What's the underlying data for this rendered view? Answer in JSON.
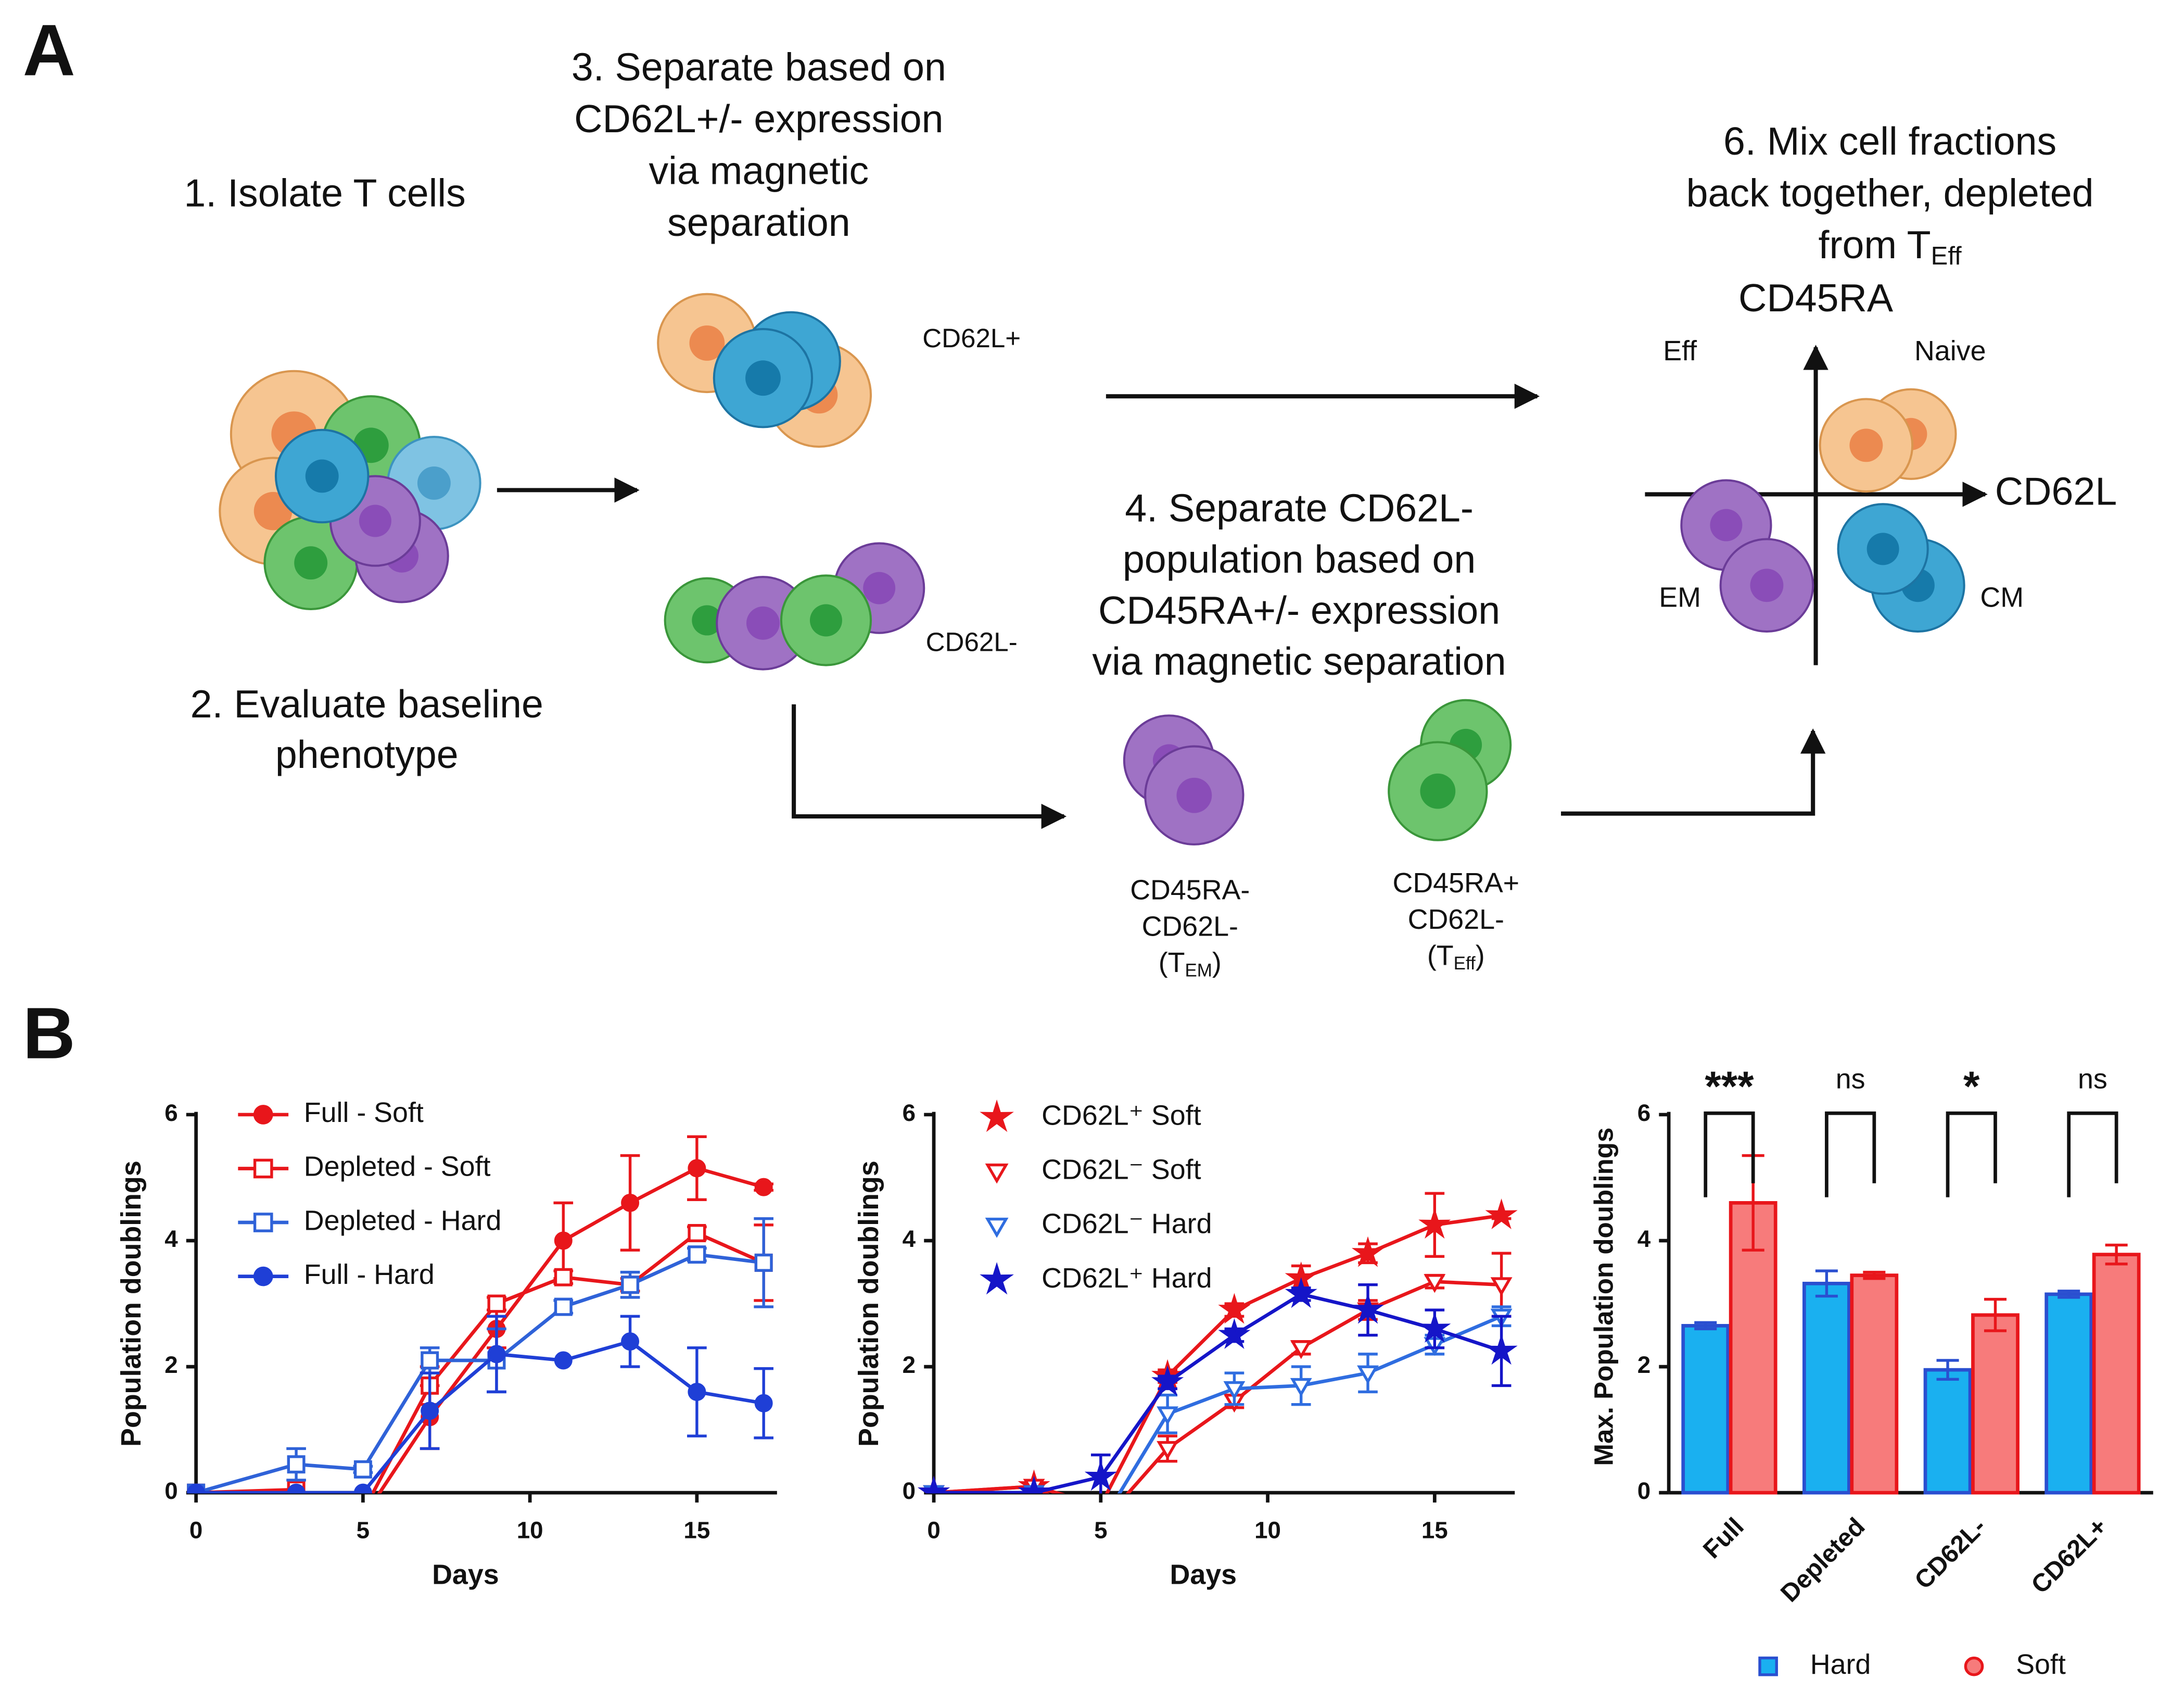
{
  "panel_labels": [
    "A",
    "B"
  ],
  "diagram": {
    "step1": "1.  Isolate T cells",
    "step2": [
      "2. Evaluate baseline",
      "phenotype"
    ],
    "step3": [
      "3. Separate based on",
      "CD62L+/- expression",
      "via magnetic",
      "separation"
    ],
    "step4": [
      "4. Separate CD62L-",
      "population based on",
      "CD45RA+/- expression",
      "via magnetic separation"
    ],
    "step6": [
      "6. Mix cell fractions",
      "back together, depleted",
      "from T"
    ],
    "step6_sub": "Eff",
    "cd62l_plus": "CD62L+",
    "cd62l_minus": "CD62L-",
    "tem": {
      "lines": [
        "CD45RA-",
        "CD62L-"
      ],
      "open": "(T",
      "sub": "EM",
      "close": ")"
    },
    "teff": {
      "lines": [
        "CD45RA+",
        "CD62L-"
      ],
      "open": "(T",
      "sub": "Eff",
      "close": ")"
    },
    "quadrant": {
      "y_axis": "CD45RA",
      "x_axis": "CD62L",
      "top_left": "Eff",
      "top_right": "Naive",
      "bottom_left": "EM",
      "bottom_right": "CM"
    }
  },
  "chart_data": [
    {
      "type": "line",
      "xlabel": "Days",
      "ylabel": "Population doublings",
      "x": [
        0,
        3,
        5,
        7,
        9,
        11,
        13,
        15,
        17
      ],
      "xlim": [
        0,
        17.4
      ],
      "xticks": [
        0,
        5,
        10,
        15
      ],
      "ylim": [
        0,
        6
      ],
      "yticks": [
        0,
        2,
        4,
        6
      ],
      "series": [
        {
          "name": "Full - Soft",
          "color": "#e8161b",
          "marker": "circle",
          "filled": true,
          "values": [
            0,
            0,
            -0.4,
            1.2,
            2.6,
            4.0,
            4.6,
            5.15,
            4.85
          ],
          "errors": [
            0,
            0,
            0,
            0.5,
            0.3,
            0.6,
            0.75,
            0.5,
            0.05
          ]
        },
        {
          "name": "Depleted - Soft",
          "color": "#e8161b",
          "marker": "square",
          "filled": false,
          "values": [
            0,
            0.05,
            -0.3,
            1.7,
            3.0,
            3.42,
            3.3,
            4.12,
            3.65
          ],
          "errors": [
            0,
            0,
            0,
            0.3,
            0.1,
            0.1,
            0.1,
            0.1,
            0.6
          ]
        },
        {
          "name": "Depleted - Hard",
          "color": "#2f62d8",
          "marker": "square",
          "filled": false,
          "values": [
            0,
            0.45,
            0.37,
            2.1,
            2.1,
            2.95,
            3.3,
            3.78,
            3.65
          ],
          "errors": [
            0,
            0.25,
            0.05,
            0.2,
            0.5,
            0.1,
            0.2,
            0.1,
            0.7
          ]
        },
        {
          "name": "Full - Hard",
          "color": "#1f3fd6",
          "marker": "circle",
          "filled": true,
          "values": [
            0,
            0,
            0,
            1.3,
            2.2,
            2.1,
            2.4,
            1.6,
            1.42
          ],
          "errors": [
            0,
            0,
            0,
            0.6,
            0.6,
            0,
            0.4,
            0.7,
            0.55
          ]
        }
      ]
    },
    {
      "type": "line",
      "xlabel": "Days",
      "ylabel": "Population doublings",
      "x": [
        0,
        3,
        5,
        7,
        9,
        11,
        13,
        15,
        17
      ],
      "xlim": [
        0,
        17.4
      ],
      "xticks": [
        0,
        5,
        10,
        15
      ],
      "ylim": [
        0,
        6
      ],
      "yticks": [
        0,
        2,
        4,
        6
      ],
      "series": [
        {
          "name": "CD62L⁺ Soft",
          "color": "#e8161b",
          "marker": "star",
          "filled": true,
          "values": [
            0,
            0.1,
            -0.2,
            1.85,
            2.9,
            3.4,
            3.8,
            4.25,
            4.4
          ],
          "errors": [
            0,
            0,
            0,
            0.1,
            0.1,
            0.2,
            0.15,
            0.5,
            0.05
          ]
        },
        {
          "name": "CD62L⁻ Soft",
          "color": "#e8161b",
          "marker": "triangle",
          "filled": false,
          "values": [
            0,
            0.1,
            -0.5,
            0.7,
            1.45,
            2.3,
            2.9,
            3.35,
            3.3
          ],
          "errors": [
            0,
            0,
            0,
            0.2,
            0.1,
            0.1,
            0.15,
            0.1,
            0.5
          ]
        },
        {
          "name": "CD62L⁻ Hard",
          "color": "#2f6de0",
          "marker": "triangle",
          "filled": false,
          "values": [
            0,
            0,
            -0.5,
            1.25,
            1.65,
            1.7,
            1.9,
            2.35,
            2.8
          ],
          "errors": [
            0,
            0,
            0,
            0.3,
            0.25,
            0.3,
            0.3,
            0.15,
            0.15
          ]
        },
        {
          "name": "CD62L⁺ Hard",
          "color": "#1515c8",
          "marker": "star",
          "filled": true,
          "values": [
            0,
            0,
            0.25,
            1.75,
            2.5,
            3.15,
            2.9,
            2.6,
            2.25
          ],
          "errors": [
            0,
            0,
            0.35,
            0.1,
            0.1,
            0.1,
            0.4,
            0.3,
            0.55
          ]
        }
      ]
    },
    {
      "type": "bar",
      "ylabel": "Max. Population doublings",
      "categories": [
        "Full",
        "Depleted",
        "CD62L-",
        "CD62L+"
      ],
      "ylim": [
        0,
        6
      ],
      "yticks": [
        0,
        2,
        4,
        6
      ],
      "significance": [
        "***",
        "ns",
        "*",
        "ns"
      ],
      "series": [
        {
          "name": "Hard",
          "color": "#1ab0f0",
          "edgecolor": "#2a4fd0",
          "values": [
            2.65,
            3.32,
            1.95,
            3.15
          ],
          "errors": [
            0.05,
            0.2,
            0.15,
            0.05
          ]
        },
        {
          "name": "Soft",
          "color": "#f77b7b",
          "edgecolor": "#e8161b",
          "values": [
            4.6,
            3.45,
            2.82,
            3.78
          ],
          "errors": [
            0.75,
            0.05,
            0.25,
            0.15
          ]
        }
      ]
    }
  ]
}
